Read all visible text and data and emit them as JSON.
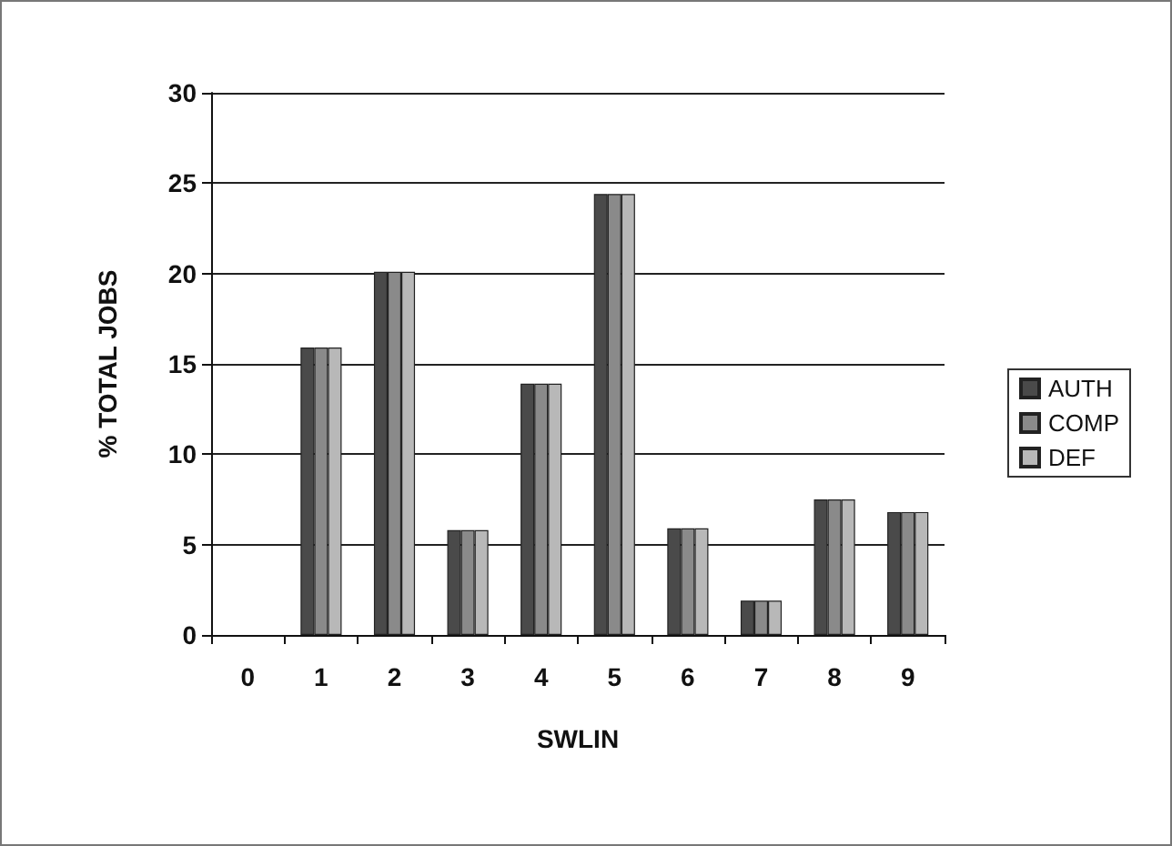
{
  "chart_data": {
    "type": "bar",
    "xlabel": "SWLIN",
    "ylabel": "% TOTAL JOBS",
    "categories": [
      "0",
      "1",
      "2",
      "3",
      "4",
      "5",
      "6",
      "7",
      "8",
      "9"
    ],
    "series": [
      {
        "name": "AUTH",
        "color": "#4a4a4a",
        "values": [
          null,
          15.9,
          20.1,
          5.8,
          13.9,
          24.4,
          5.9,
          1.9,
          7.5,
          6.8
        ]
      },
      {
        "name": "COMP",
        "color": "#8a8a8a",
        "values": [
          null,
          15.9,
          20.1,
          5.8,
          13.9,
          24.4,
          5.9,
          1.9,
          7.5,
          6.8
        ]
      },
      {
        "name": "DEF",
        "color": "#b8b8b8",
        "values": [
          null,
          15.9,
          20.1,
          5.8,
          13.9,
          24.4,
          5.9,
          1.9,
          7.5,
          6.8
        ]
      }
    ],
    "ylim": [
      0,
      30
    ],
    "yticks": [
      0,
      5,
      10,
      15,
      20,
      25,
      30
    ],
    "grid": "y",
    "legend": "right"
  }
}
